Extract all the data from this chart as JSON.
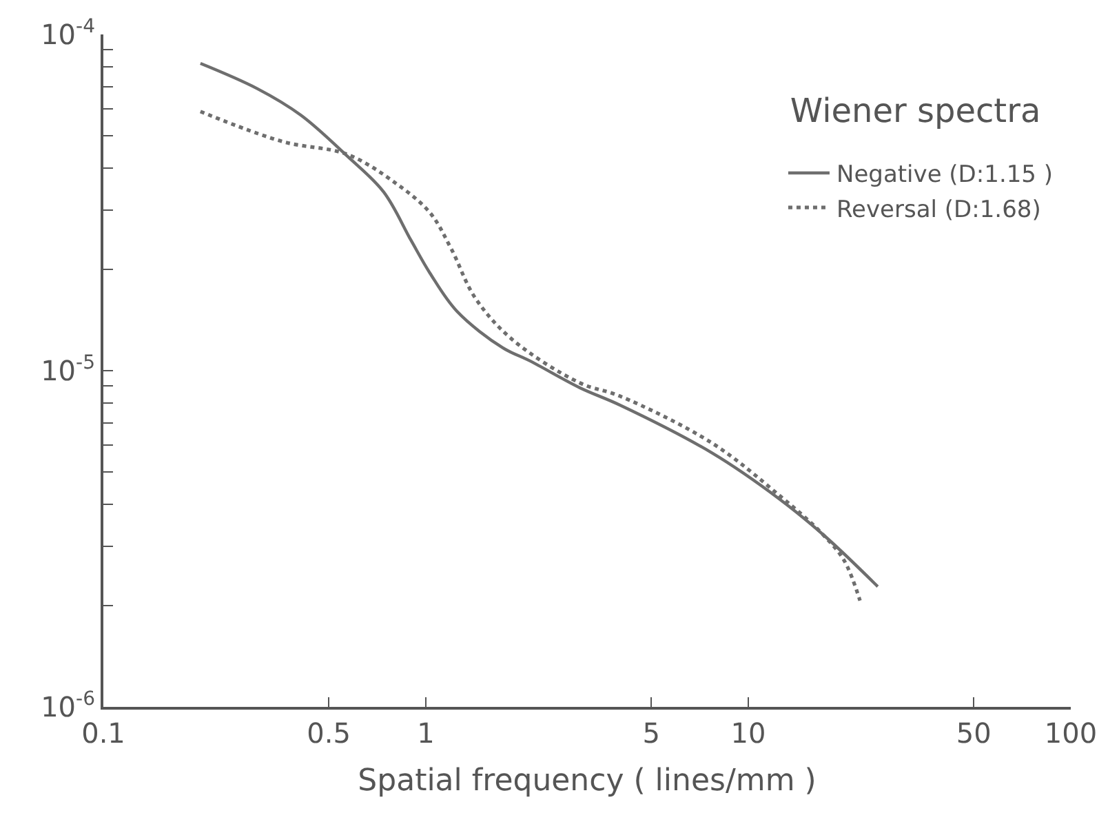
{
  "chart_data": {
    "type": "line",
    "title": "Wiener spectra",
    "xlabel": "Spatial frequency ( lines/mm )",
    "log": "xy",
    "xlim": [
      0.1,
      100
    ],
    "ylim": [
      1e-06,
      0.0001
    ],
    "xticks": [
      0.1,
      0.5,
      1,
      5,
      10,
      50,
      100
    ],
    "yticks": [
      {
        "value": 1e-06,
        "label": "10$^{-6}$"
      },
      {
        "value": 2e-06,
        "label": null
      },
      {
        "value": 3e-06,
        "label": null
      },
      {
        "value": 4e-06,
        "label": null
      },
      {
        "value": 5e-06,
        "label": null
      },
      {
        "value": 6e-06,
        "label": null
      },
      {
        "value": 7e-06,
        "label": null
      },
      {
        "value": 8e-06,
        "label": null
      },
      {
        "value": 9e-06,
        "label": null
      },
      {
        "value": 1e-05,
        "label": "10$^{-5}$"
      },
      {
        "value": 2e-05,
        "label": null
      },
      {
        "value": 3e-05,
        "label": null
      },
      {
        "value": 4e-05,
        "label": null
      },
      {
        "value": 5e-05,
        "label": null
      },
      {
        "value": 6e-05,
        "label": null
      },
      {
        "value": 7e-05,
        "label": null
      },
      {
        "value": 8e-05,
        "label": null
      },
      {
        "value": 9e-05,
        "label": null
      },
      {
        "value": 0.0001,
        "label": "10$^{-4}$"
      }
    ],
    "legend": "top right",
    "marker": "none",
    "series": [
      {
        "name": "Negative (D:1.15 )",
        "color": "#6e6e6e",
        "line_style": "solid",
        "x": [
          0.2,
          0.3,
          0.41,
          0.57,
          0.74,
          0.9,
          1.03,
          1.25,
          1.73,
          2.1,
          3.0,
          4.0,
          7.7,
          12.5,
          17.4,
          25.2
        ],
        "values": [
          8.2e-05,
          6.9e-05,
          5.75e-05,
          4.35e-05,
          3.4e-05,
          2.44e-05,
          1.95e-05,
          1.5e-05,
          1.17e-05,
          1.07e-05,
          8.9e-06,
          7.9e-06,
          5.7e-06,
          4.15e-06,
          3.2e-06,
          2.28e-06
        ]
      },
      {
        "name": "Reversal (D:1.68)",
        "color": "#6e6e6e",
        "line_style": "dotted",
        "x": [
          0.2,
          0.36,
          0.57,
          0.81,
          1.03,
          1.2,
          1.42,
          1.85,
          3.0,
          4.0,
          7.7,
          12.5,
          16.8,
          19.8,
          22.2
        ],
        "values": [
          5.9e-05,
          4.8e-05,
          4.4e-05,
          3.6e-05,
          2.95e-05,
          2.3e-05,
          1.65e-05,
          1.24e-05,
          9.2e-06,
          8.4e-06,
          6.1e-06,
          4.25e-06,
          3.3e-06,
          2.73e-06,
          2.07e-06
        ]
      }
    ]
  }
}
